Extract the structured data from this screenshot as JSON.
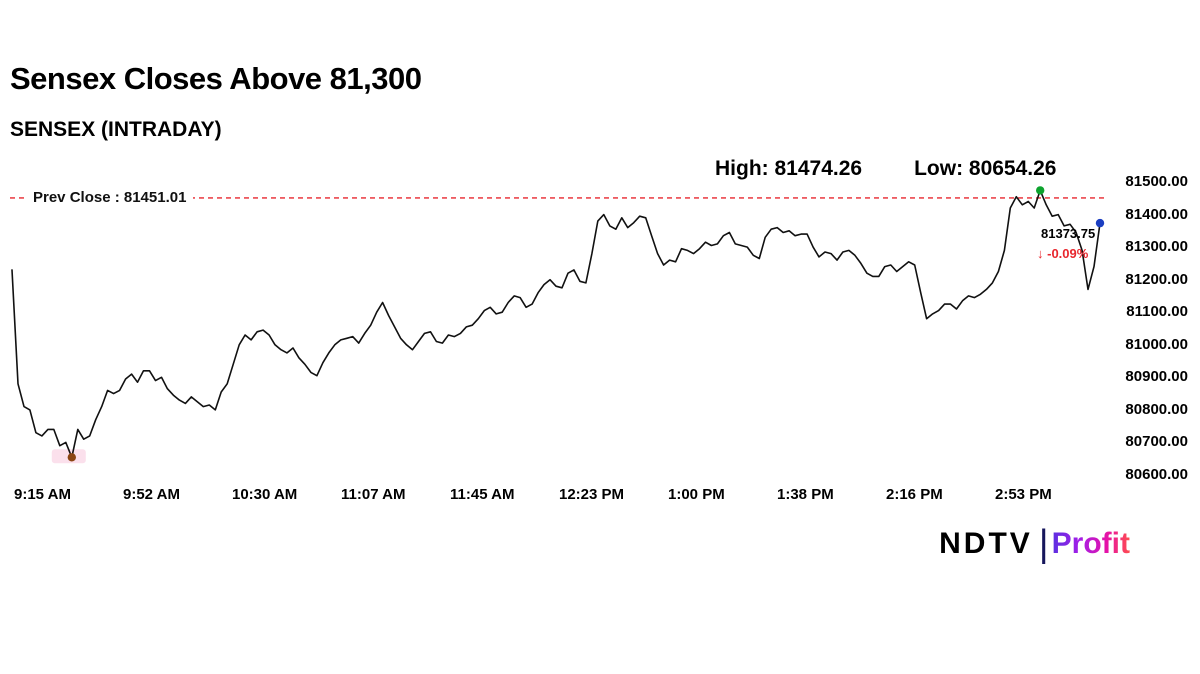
{
  "brand": {
    "ndtv": "NDTV",
    "separator": "|",
    "profit": "Profit"
  },
  "colors": {
    "line": "#111111",
    "prev_close": "#e8262d",
    "change": "#e8262d",
    "high_dot": "#0da32e",
    "low_dot": "#8b4513",
    "last_dot": "#1b3ec1",
    "highlight": "#f9cfe2"
  },
  "chart_data": {
    "type": "line",
    "title": "Sensex Closes Above 81,300",
    "subtitle": "SENSEX (INTRADAY)",
    "high_label": "High: 81474.26",
    "low_label": "Low: 80654.26",
    "high": 81474.26,
    "low": 80654.26,
    "prev_close": 81451.01,
    "prev_close_label": "Prev Close : 81451.01",
    "last_price": "81373.75",
    "change": "↓ -0.09%",
    "xlabel": "",
    "ylabel": "",
    "grid": false,
    "legend": "none",
    "ylim": [
      80600,
      81500
    ],
    "x_ticks": [
      "9:15 AM",
      "9:52 AM",
      "10:30 AM",
      "11:07 AM",
      "11:45 AM",
      "12:23 PM",
      "1:00 PM",
      "1:38 PM",
      "2:16 PM",
      "2:53 PM"
    ],
    "y_ticks": [
      "81500.00",
      "81400.00",
      "81300.00",
      "81200.00",
      "81100.00",
      "81000.00",
      "80900.00",
      "80800.00",
      "80700.00",
      "80600.00"
    ],
    "series": [
      81230,
      80880,
      80810,
      80800,
      80730,
      80720,
      80740,
      80740,
      80690,
      80700,
      80654.26,
      80740,
      80710,
      80720,
      80770,
      80810,
      80860,
      80850,
      80860,
      80895,
      80910,
      80885,
      80920,
      80920,
      80890,
      80900,
      80865,
      80845,
      80830,
      80820,
      80840,
      80825,
      80810,
      80815,
      80800,
      80855,
      80880,
      80940,
      81000,
      81030,
      81015,
      81040,
      81045,
      81030,
      81000,
      80985,
      80975,
      80990,
      80960,
      80940,
      80915,
      80905,
      80945,
      80975,
      81000,
      81015,
      81020,
      81025,
      81005,
      81035,
      81060,
      81100,
      81130,
      81090,
      81055,
      81020,
      81000,
      80985,
      81010,
      81035,
      81040,
      81010,
      81005,
      81030,
      81025,
      81035,
      81055,
      81060,
      81080,
      81105,
      81115,
      81095,
      81100,
      81130,
      81150,
      81145,
      81115,
      81125,
      81160,
      81185,
      81200,
      81180,
      81175,
      81220,
      81230,
      81195,
      81190,
      81280,
      81380,
      81400,
      81365,
      81355,
      81390,
      81360,
      81375,
      81395,
      81390,
      81335,
      81280,
      81245,
      81260,
      81255,
      81295,
      81290,
      81280,
      81295,
      81315,
      81305,
      81310,
      81335,
      81345,
      81310,
      81305,
      81300,
      81275,
      81265,
      81330,
      81355,
      81360,
      81345,
      81350,
      81335,
      81340,
      81340,
      81300,
      81270,
      81285,
      81280,
      81260,
      81285,
      81290,
      81275,
      81250,
      81220,
      81210,
      81210,
      81240,
      81245,
      81225,
      81240,
      81255,
      81245,
      81160,
      81080,
      81095,
      81105,
      81125,
      81125,
      81110,
      81135,
      81150,
      81145,
      81155,
      81170,
      81190,
      81225,
      81290,
      81420,
      81455,
      81430,
      81440,
      81420,
      81474.26,
      81430,
      81395,
      81400,
      81365,
      81370,
      81345,
      81290,
      81170,
      81240,
      81373.75
    ]
  }
}
